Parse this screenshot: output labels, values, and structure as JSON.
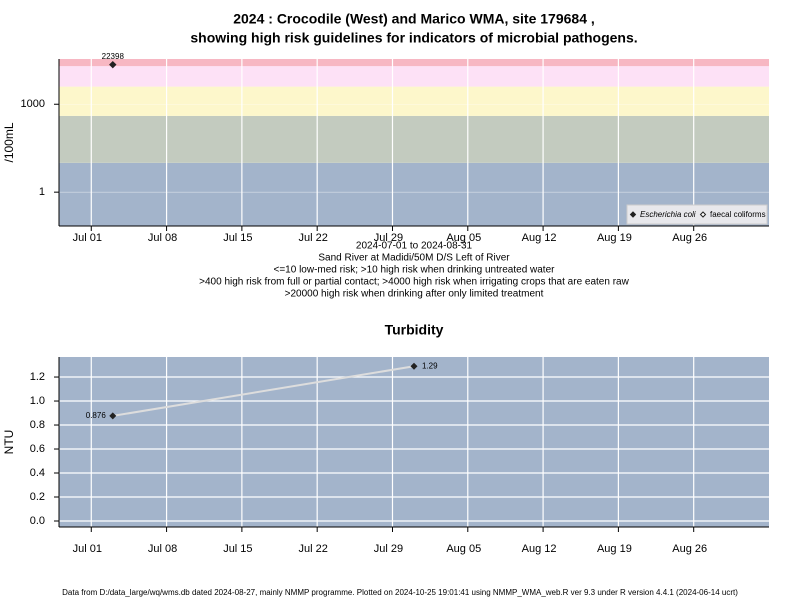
{
  "chart_data": [
    {
      "type": "scatter",
      "title": "2024 : Crocodile (West) and Marico WMA, site 179684 ,",
      "subtitle": "showing high risk guidelines for indicators of microbial pathogens.",
      "y_label": "/100mL",
      "log_y": true,
      "ylim": [
        0.07,
        35000
      ],
      "yticks": [
        1,
        1000
      ],
      "xlim": [
        "2024-06-28",
        "2024-09-02"
      ],
      "xticks": [
        {
          "value": "2024-07-01",
          "label": "Jul 01"
        },
        {
          "value": "2024-07-08",
          "label": "Jul 08"
        },
        {
          "value": "2024-07-15",
          "label": "Jul 15"
        },
        {
          "value": "2024-07-22",
          "label": "Jul 22"
        },
        {
          "value": "2024-07-29",
          "label": "Jul 29"
        },
        {
          "value": "2024-08-05",
          "label": "Aug 05"
        },
        {
          "value": "2024-08-12",
          "label": "Aug 12"
        },
        {
          "value": "2024-08-19",
          "label": "Aug 19"
        },
        {
          "value": "2024-08-26",
          "label": "Aug 26"
        }
      ],
      "band_limits": [
        10,
        400,
        4000,
        20000
      ],
      "band_colors": [
        "#a3b4cb",
        "#c3cbbf",
        "#fdf7cb",
        "#fde1f6",
        "#f7b7c3"
      ],
      "grid": true,
      "legend": "bottom right",
      "series": [
        {
          "name": "Escherichia coli",
          "marker": "filled",
          "color": "#222222",
          "x": [
            "2024-07-03"
          ],
          "values": [
            22398
          ]
        },
        {
          "name": "faecal coliforms",
          "marker": "open",
          "color": "#222222",
          "x": [],
          "values": []
        }
      ],
      "notes": [
        "2024-07-01 to 2024-08-31",
        "Sand River at Madidi/50M D/S Left of River",
        "<=10 low-med risk; >10 high risk when drinking untreated water",
        ">400 high risk from full or partial contact; >4000 high risk when irrigating crops that are eaten raw",
        ">20000 high risk when drinking after only limited treatment"
      ]
    },
    {
      "type": "line",
      "title": "Turbidity",
      "y_label": "NTU",
      "log_y": false,
      "ylim": [
        -0.05,
        1.367
      ],
      "yticks": [
        {
          "value": 0,
          "label": "0.0"
        },
        0.2,
        0.4,
        0.6,
        0.8,
        {
          "value": 1,
          "label": "1.0"
        },
        1.2
      ],
      "xlim": [
        "2024-06-28",
        "2024-09-02"
      ],
      "xticks": [
        {
          "value": "2024-07-01",
          "label": "Jul 01"
        },
        {
          "value": "2024-07-08",
          "label": "Jul 08"
        },
        {
          "value": "2024-07-15",
          "label": "Jul 15"
        },
        {
          "value": "2024-07-22",
          "label": "Jul 22"
        },
        {
          "value": "2024-07-29",
          "label": "Jul 29"
        },
        {
          "value": "2024-08-05",
          "label": "Aug 05"
        },
        {
          "value": "2024-08-12",
          "label": "Aug 12"
        },
        {
          "value": "2024-08-19",
          "label": "Aug 19"
        },
        {
          "value": "2024-08-26",
          "label": "Aug 26"
        }
      ],
      "background": "#a3b4cb",
      "grid": true,
      "series": [
        {
          "name": "Turbidity",
          "color": "#dddddd",
          "marker_color": "#222222",
          "x": [
            "2024-07-03",
            "2024-07-31"
          ],
          "values": [
            0.876,
            1.29
          ]
        }
      ]
    }
  ],
  "footer": "Data from D:/data_large/wq/wms.db dated 2024-08-27, mainly NMMP programme. Plotted on 2024-10-25 19:01:41 using NMMP_WMA_web.R ver 9.3 under R version 4.4.1 (2024-06-14 ucrt)"
}
